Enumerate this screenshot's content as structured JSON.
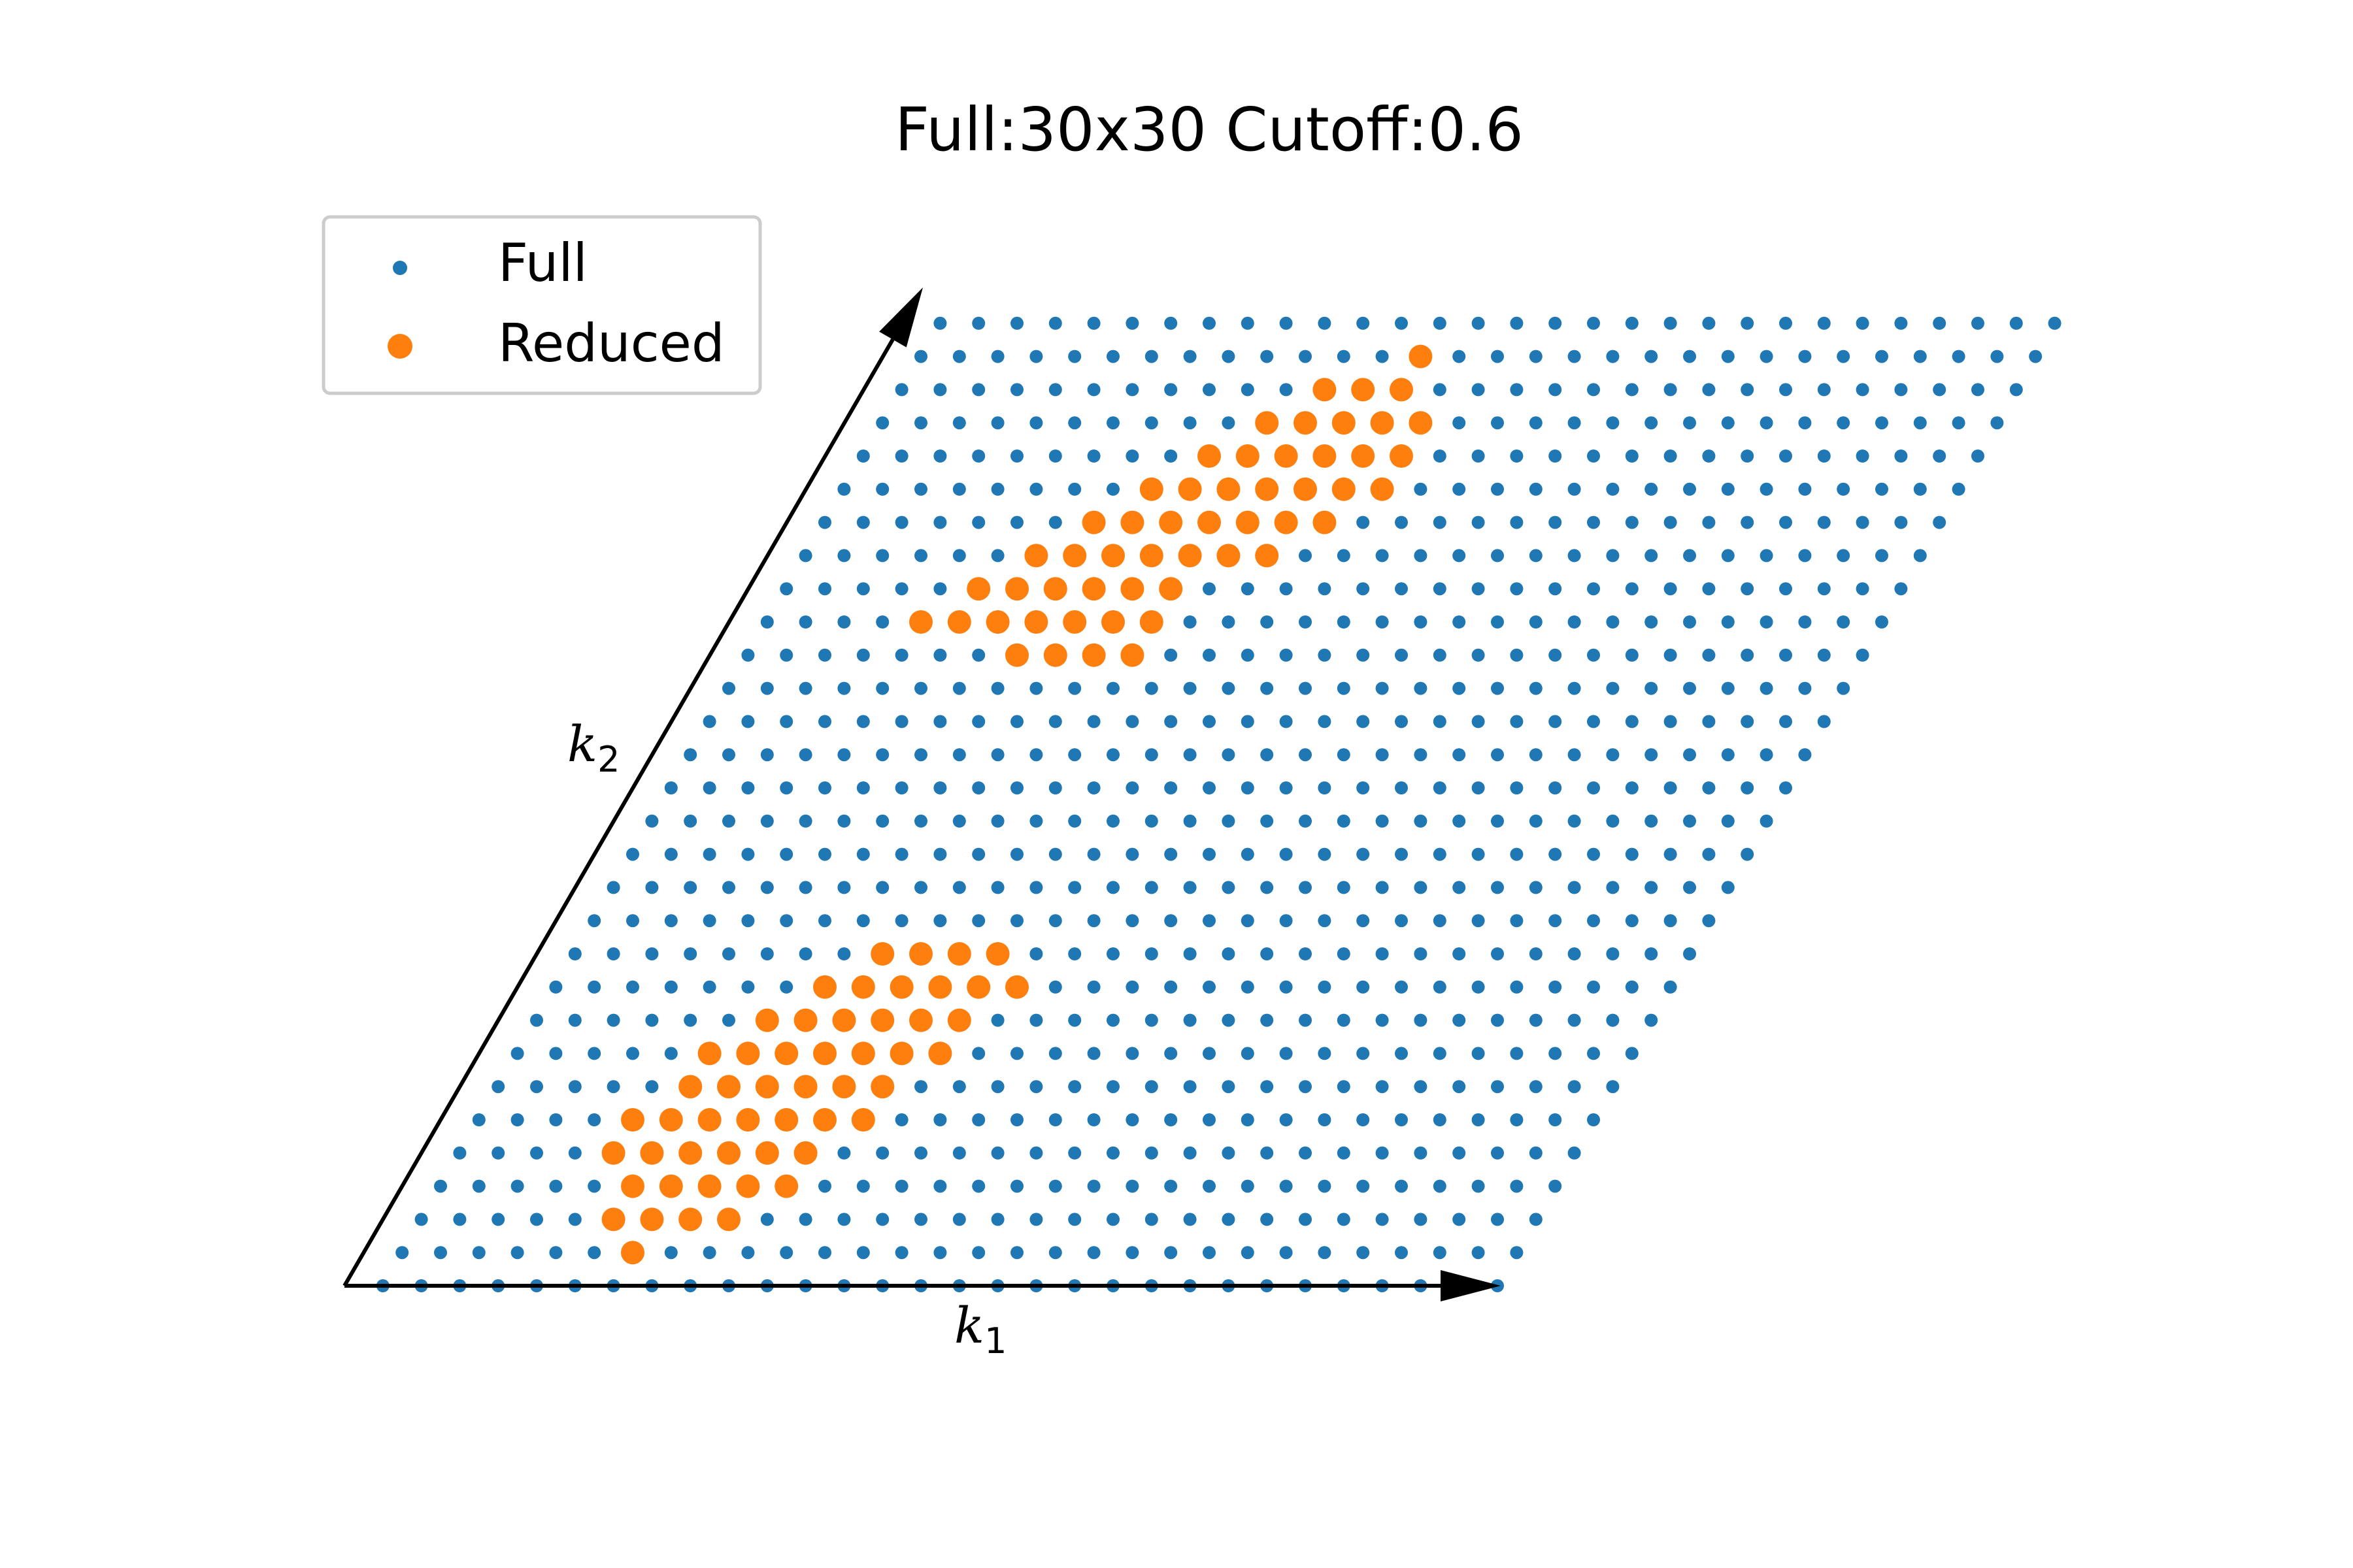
{
  "chart_data": {
    "type": "scatter",
    "title": "Full:30x30 Cutoff:0.6",
    "grid": false,
    "legend_placement": "top-left",
    "lattice_size": [
      30,
      30
    ],
    "cutoff": 0.6,
    "basis": {
      "k1": {
        "symbol": "k",
        "subscript": "1",
        "vector": [
          1,
          0
        ]
      },
      "k2": {
        "symbol": "k",
        "subscript": "2",
        "vector": [
          0.5,
          0.866
        ]
      }
    },
    "series": [
      {
        "name": "Full",
        "color": "#1f77b4",
        "marker": "small-dot",
        "description_of_points": "all (i, j) for i in 1..30, j in 0..29"
      },
      {
        "name": "Reduced",
        "color": "#ff7f0e",
        "marker": "large-dot",
        "points": [
          [
            14,
            28
          ],
          [
            12,
            27
          ],
          [
            13,
            27
          ],
          [
            14,
            27
          ],
          [
            11,
            26
          ],
          [
            12,
            26
          ],
          [
            13,
            26
          ],
          [
            14,
            26
          ],
          [
            15,
            26
          ],
          [
            10,
            25
          ],
          [
            11,
            25
          ],
          [
            12,
            25
          ],
          [
            13,
            25
          ],
          [
            14,
            25
          ],
          [
            15,
            25
          ],
          [
            9,
            24
          ],
          [
            10,
            24
          ],
          [
            11,
            24
          ],
          [
            12,
            24
          ],
          [
            13,
            24
          ],
          [
            14,
            24
          ],
          [
            15,
            24
          ],
          [
            8,
            23
          ],
          [
            9,
            23
          ],
          [
            10,
            23
          ],
          [
            11,
            23
          ],
          [
            12,
            23
          ],
          [
            13,
            23
          ],
          [
            14,
            23
          ],
          [
            7,
            22
          ],
          [
            8,
            22
          ],
          [
            9,
            22
          ],
          [
            10,
            22
          ],
          [
            11,
            22
          ],
          [
            12,
            22
          ],
          [
            13,
            22
          ],
          [
            6,
            21
          ],
          [
            7,
            21
          ],
          [
            8,
            21
          ],
          [
            9,
            21
          ],
          [
            10,
            21
          ],
          [
            11,
            21
          ],
          [
            5,
            20
          ],
          [
            6,
            20
          ],
          [
            7,
            20
          ],
          [
            8,
            20
          ],
          [
            9,
            20
          ],
          [
            10,
            20
          ],
          [
            11,
            20
          ],
          [
            8,
            19
          ],
          [
            9,
            19
          ],
          [
            10,
            19
          ],
          [
            11,
            19
          ],
          [
            9,
            10
          ],
          [
            10,
            10
          ],
          [
            11,
            10
          ],
          [
            12,
            10
          ],
          [
            8,
            9
          ],
          [
            9,
            9
          ],
          [
            10,
            9
          ],
          [
            11,
            9
          ],
          [
            12,
            9
          ],
          [
            13,
            9
          ],
          [
            7,
            8
          ],
          [
            8,
            8
          ],
          [
            9,
            8
          ],
          [
            10,
            8
          ],
          [
            11,
            8
          ],
          [
            12,
            8
          ],
          [
            6,
            7
          ],
          [
            7,
            7
          ],
          [
            8,
            7
          ],
          [
            9,
            7
          ],
          [
            10,
            7
          ],
          [
            11,
            7
          ],
          [
            12,
            7
          ],
          [
            6,
            6
          ],
          [
            7,
            6
          ],
          [
            8,
            6
          ],
          [
            9,
            6
          ],
          [
            10,
            6
          ],
          [
            11,
            6
          ],
          [
            5,
            5
          ],
          [
            6,
            5
          ],
          [
            7,
            5
          ],
          [
            8,
            5
          ],
          [
            9,
            5
          ],
          [
            10,
            5
          ],
          [
            11,
            5
          ],
          [
            5,
            4
          ],
          [
            6,
            4
          ],
          [
            7,
            4
          ],
          [
            8,
            4
          ],
          [
            9,
            4
          ],
          [
            10,
            4
          ],
          [
            6,
            3
          ],
          [
            7,
            3
          ],
          [
            8,
            3
          ],
          [
            9,
            3
          ],
          [
            10,
            3
          ],
          [
            6,
            2
          ],
          [
            7,
            2
          ],
          [
            8,
            2
          ],
          [
            9,
            2
          ],
          [
            7,
            1
          ]
        ]
      }
    ]
  }
}
